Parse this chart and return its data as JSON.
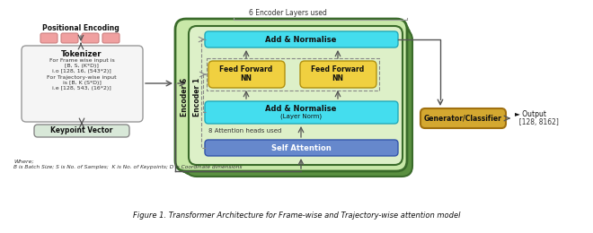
{
  "bg_color": "#ffffff",
  "fig_width": 6.4,
  "fig_height": 2.37,
  "caption": "Figure 1. Transformer Architecture for Frame-wise and Trajectory-wise attention model",
  "colors": {
    "dark_green": "#3a6b2a",
    "mid_green": "#5a9040",
    "light_green": "#c8e8a8",
    "lighter_green": "#ddf0c8",
    "cyan": "#44ddee",
    "blue_sa": "#6688cc",
    "yellow_ff": "#f0d040",
    "pink": "#f0a0a0",
    "orange": "#d4a830",
    "tokenizer_bg": "#f5f5f5",
    "keypoint_bg": "#d8e8d8",
    "arrow": "#555555",
    "dashed": "#888888",
    "text": "#111111",
    "text_light": "#333333"
  },
  "enc6_label": "Encoder 6",
  "enc1_label": "Encoder 1",
  "add_norm_top": "Add & Normalise",
  "ff_label": "Feed Forward\nNN",
  "add_norm_bottom": "Add & Normalise\n(Layer Norm)",
  "self_attn": "Self Attention",
  "attn_heads": "8 Attention heads used",
  "enc_layers": "6 Encoder Layers used",
  "pos_enc": "Positional Encoding",
  "tokenizer_title": "Tokenizer",
  "tok_line1": "For Frame wise input is",
  "tok_line2": "[B, S, (K*D)]",
  "tok_line3": "i.o [128, 16, (543*2)]",
  "tok_line4": "For Trajectory-wise input",
  "tok_line5": "is [B, K (S*D)]",
  "tok_line6": "i.e [128, 543, (16*2)]",
  "keypoint": "Keypoint Vector",
  "generator": "Generator/Classifier",
  "output_label": "► Output\n  [128, 8162]",
  "where_text": "Where;",
  "footnote": "B is Batch Size; S is No. of Samples;  K is No. of Keypoints; D is Coordinate dimensions"
}
